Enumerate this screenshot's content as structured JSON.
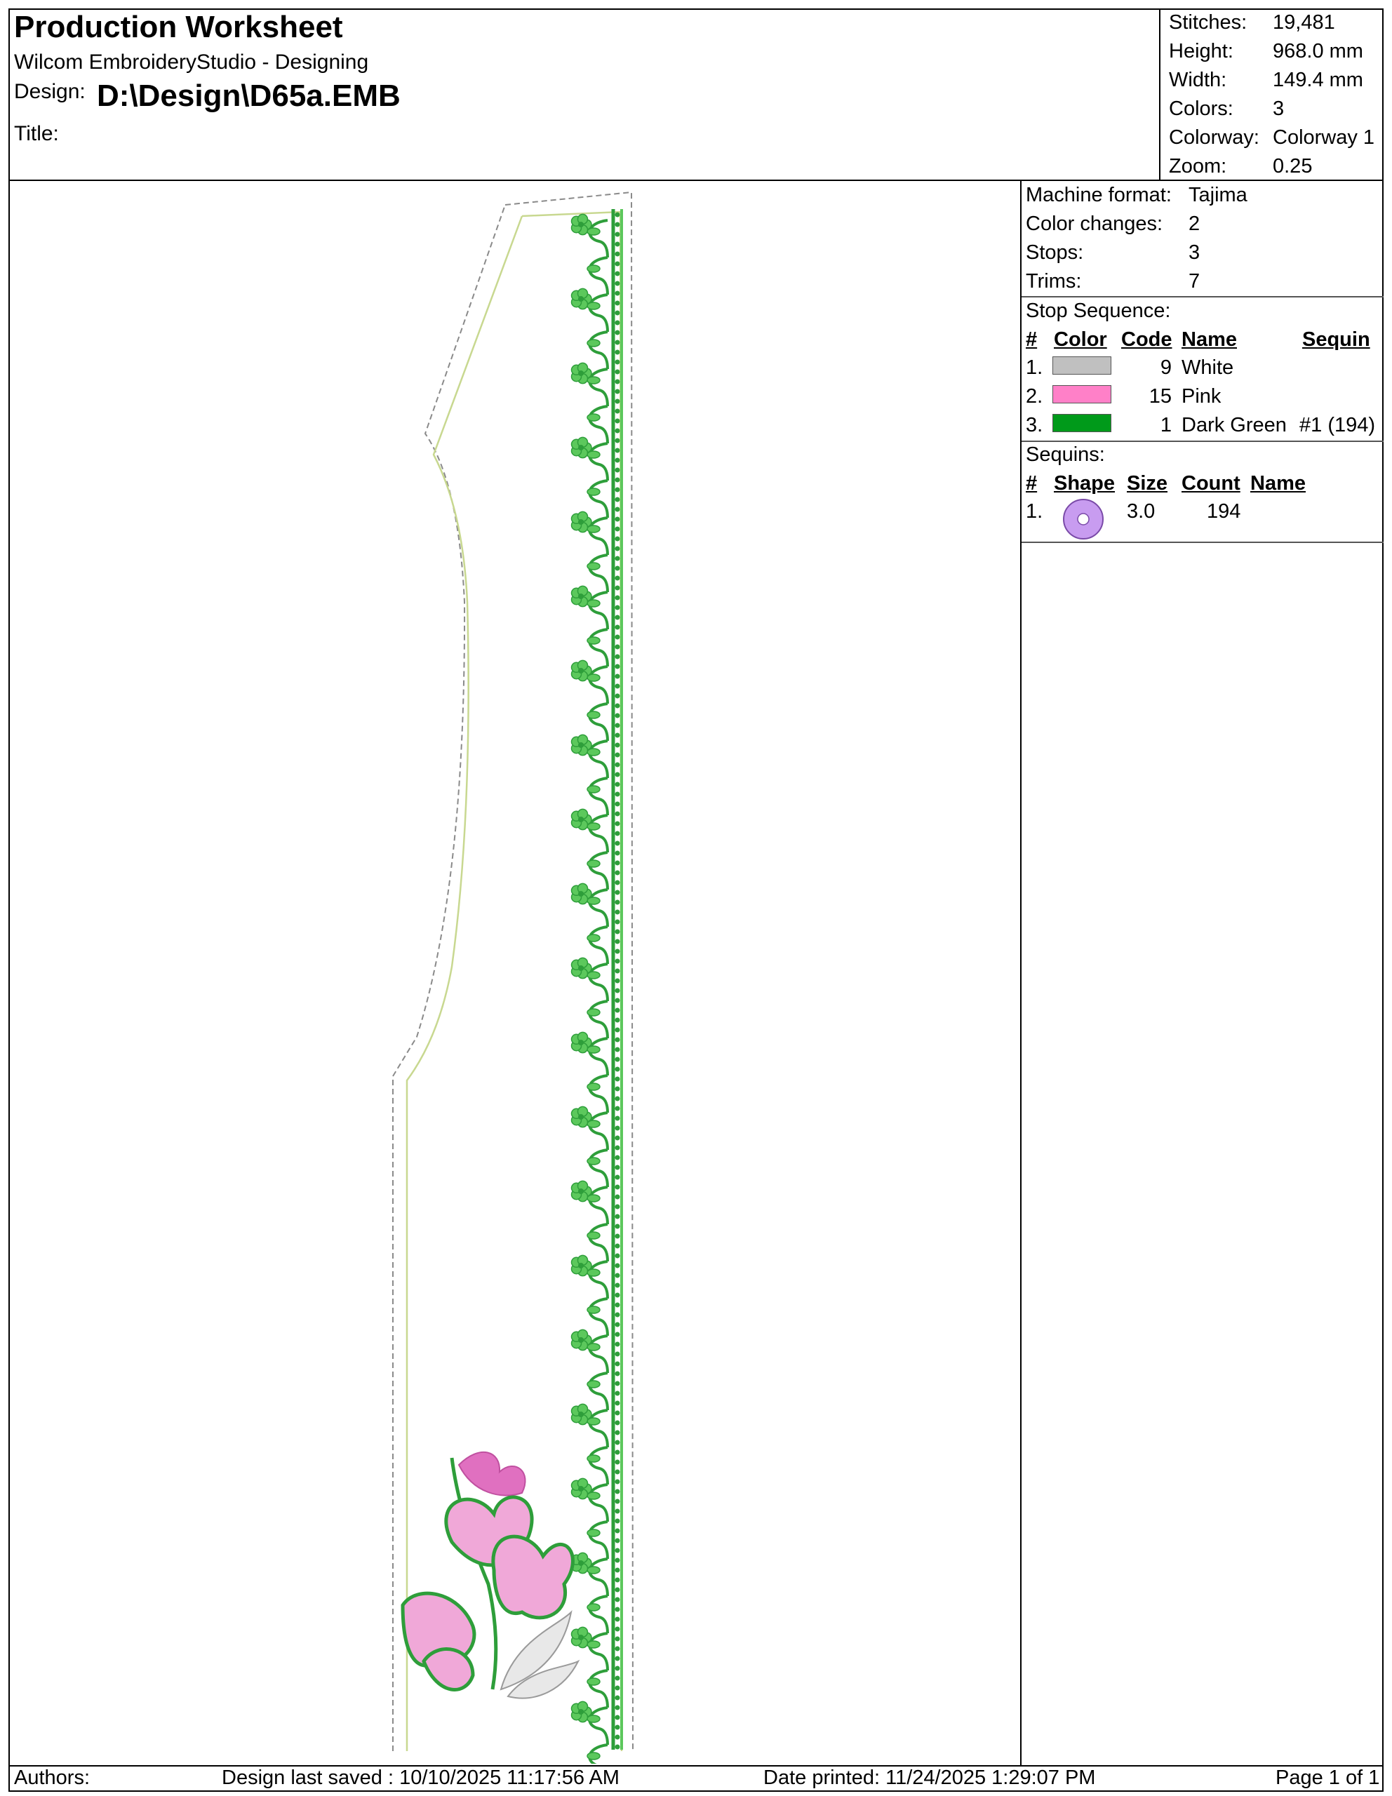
{
  "header": {
    "title": "Production Worksheet",
    "software": "Wilcom EmbroideryStudio - Designing",
    "design_label": "Design:",
    "design_value": "D:\\Design\\D65a.EMB",
    "title_label": "Title:"
  },
  "summary": [
    {
      "label": "Stitches:",
      "value": "19,481"
    },
    {
      "label": "Height:",
      "value": "968.0 mm"
    },
    {
      "label": "Width:",
      "value": "149.4 mm"
    },
    {
      "label": "Colors:",
      "value": "3"
    },
    {
      "label": "Colorway:",
      "value": "Colorway 1"
    },
    {
      "label": "Zoom:",
      "value": "0.25"
    }
  ],
  "machine": [
    {
      "label": "Machine format:",
      "value": "Tajima"
    },
    {
      "label": "Color changes:",
      "value": "2"
    },
    {
      "label": "Stops:",
      "value": "3"
    },
    {
      "label": "Trims:",
      "value": "7"
    }
  ],
  "stop_sequence": {
    "heading": "Stop Sequence:",
    "columns": [
      "#",
      "Color",
      "Code",
      "Name",
      "Sequin"
    ],
    "rows": [
      {
        "num": "1.",
        "color": "#c0c0c0",
        "code": "9",
        "name": "White",
        "sequin": ""
      },
      {
        "num": "2.",
        "color": "#ff80c8",
        "code": "15",
        "name": "Pink",
        "sequin": ""
      },
      {
        "num": "3.",
        "color": "#009a1a",
        "code": "1",
        "name": "Dark Green",
        "sequin": "#1 (194)"
      }
    ]
  },
  "sequins": {
    "heading": "Sequins:",
    "columns": [
      "#",
      "Shape",
      "Size",
      "Count",
      "Name"
    ],
    "rows": [
      {
        "num": "1.",
        "shape": "round-sequin-icon",
        "shape_color": "#c89cf0",
        "size": "3.0",
        "count": "194",
        "name": ""
      }
    ]
  },
  "footer": {
    "authors": "Authors:",
    "saved": "Design last saved : 10/10/2025 11:17:56 AM",
    "printed": "Date printed: 11/24/2025 1:29:07 PM",
    "page": "Page 1 of 1"
  },
  "colors": {
    "stem_green": "#2e9e3a",
    "light_green": "#5cc85c",
    "pink": "#f0a8d8",
    "pink_dark": "#e070c0",
    "outline": "#c8d890"
  }
}
